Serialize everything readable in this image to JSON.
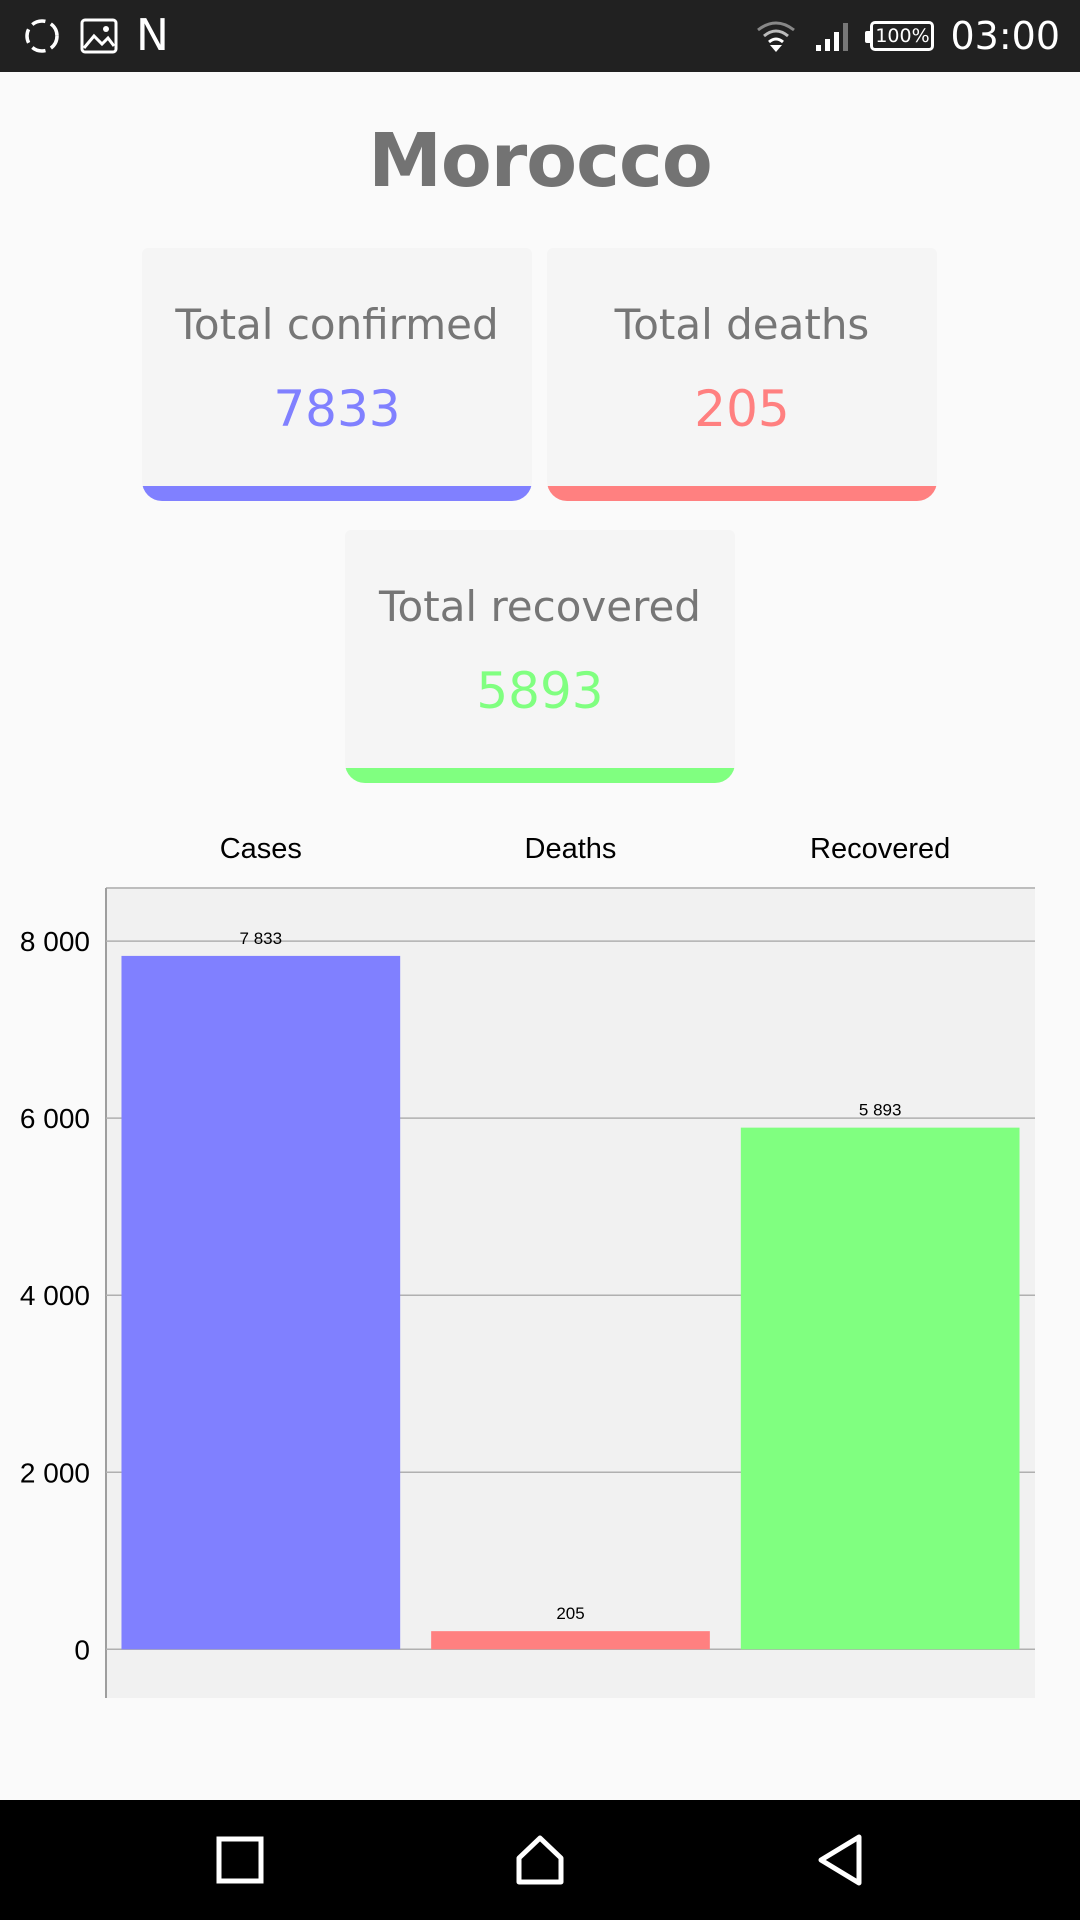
{
  "status_bar": {
    "left_icons": [
      "sync-circle-icon",
      "image-icon",
      "n-icon"
    ],
    "n_glyph": "N",
    "battery": "100%",
    "time": "03:00"
  },
  "country": "Morocco",
  "cards": {
    "confirmed": {
      "label": "Total confirmed",
      "value": "7833",
      "color": "#8080ff"
    },
    "deaths": {
      "label": "Total deaths",
      "value": "205",
      "color": "#ff8080"
    },
    "recovered": {
      "label": "Total recovered",
      "value": "5893",
      "color": "#80ff80"
    }
  },
  "chart_data": {
    "type": "bar",
    "categories": [
      "Cases",
      "Deaths",
      "Recovered"
    ],
    "values": [
      7833,
      205,
      5893
    ],
    "value_labels": [
      "7 833",
      "205",
      "5 893"
    ],
    "colors": [
      "#8080ff",
      "#ff8080",
      "#80ff80"
    ],
    "y_ticks": [
      0,
      2000,
      4000,
      6000,
      8000
    ],
    "y_tick_labels": [
      "0",
      "2 000",
      "4 000",
      "6 000",
      "8 000"
    ],
    "ylim": [
      -550,
      8600
    ],
    "grid": true,
    "category_labels_position": "top"
  },
  "nav_bar": {
    "buttons": [
      "recents-square-icon",
      "home-icon",
      "back-triangle-icon"
    ]
  }
}
